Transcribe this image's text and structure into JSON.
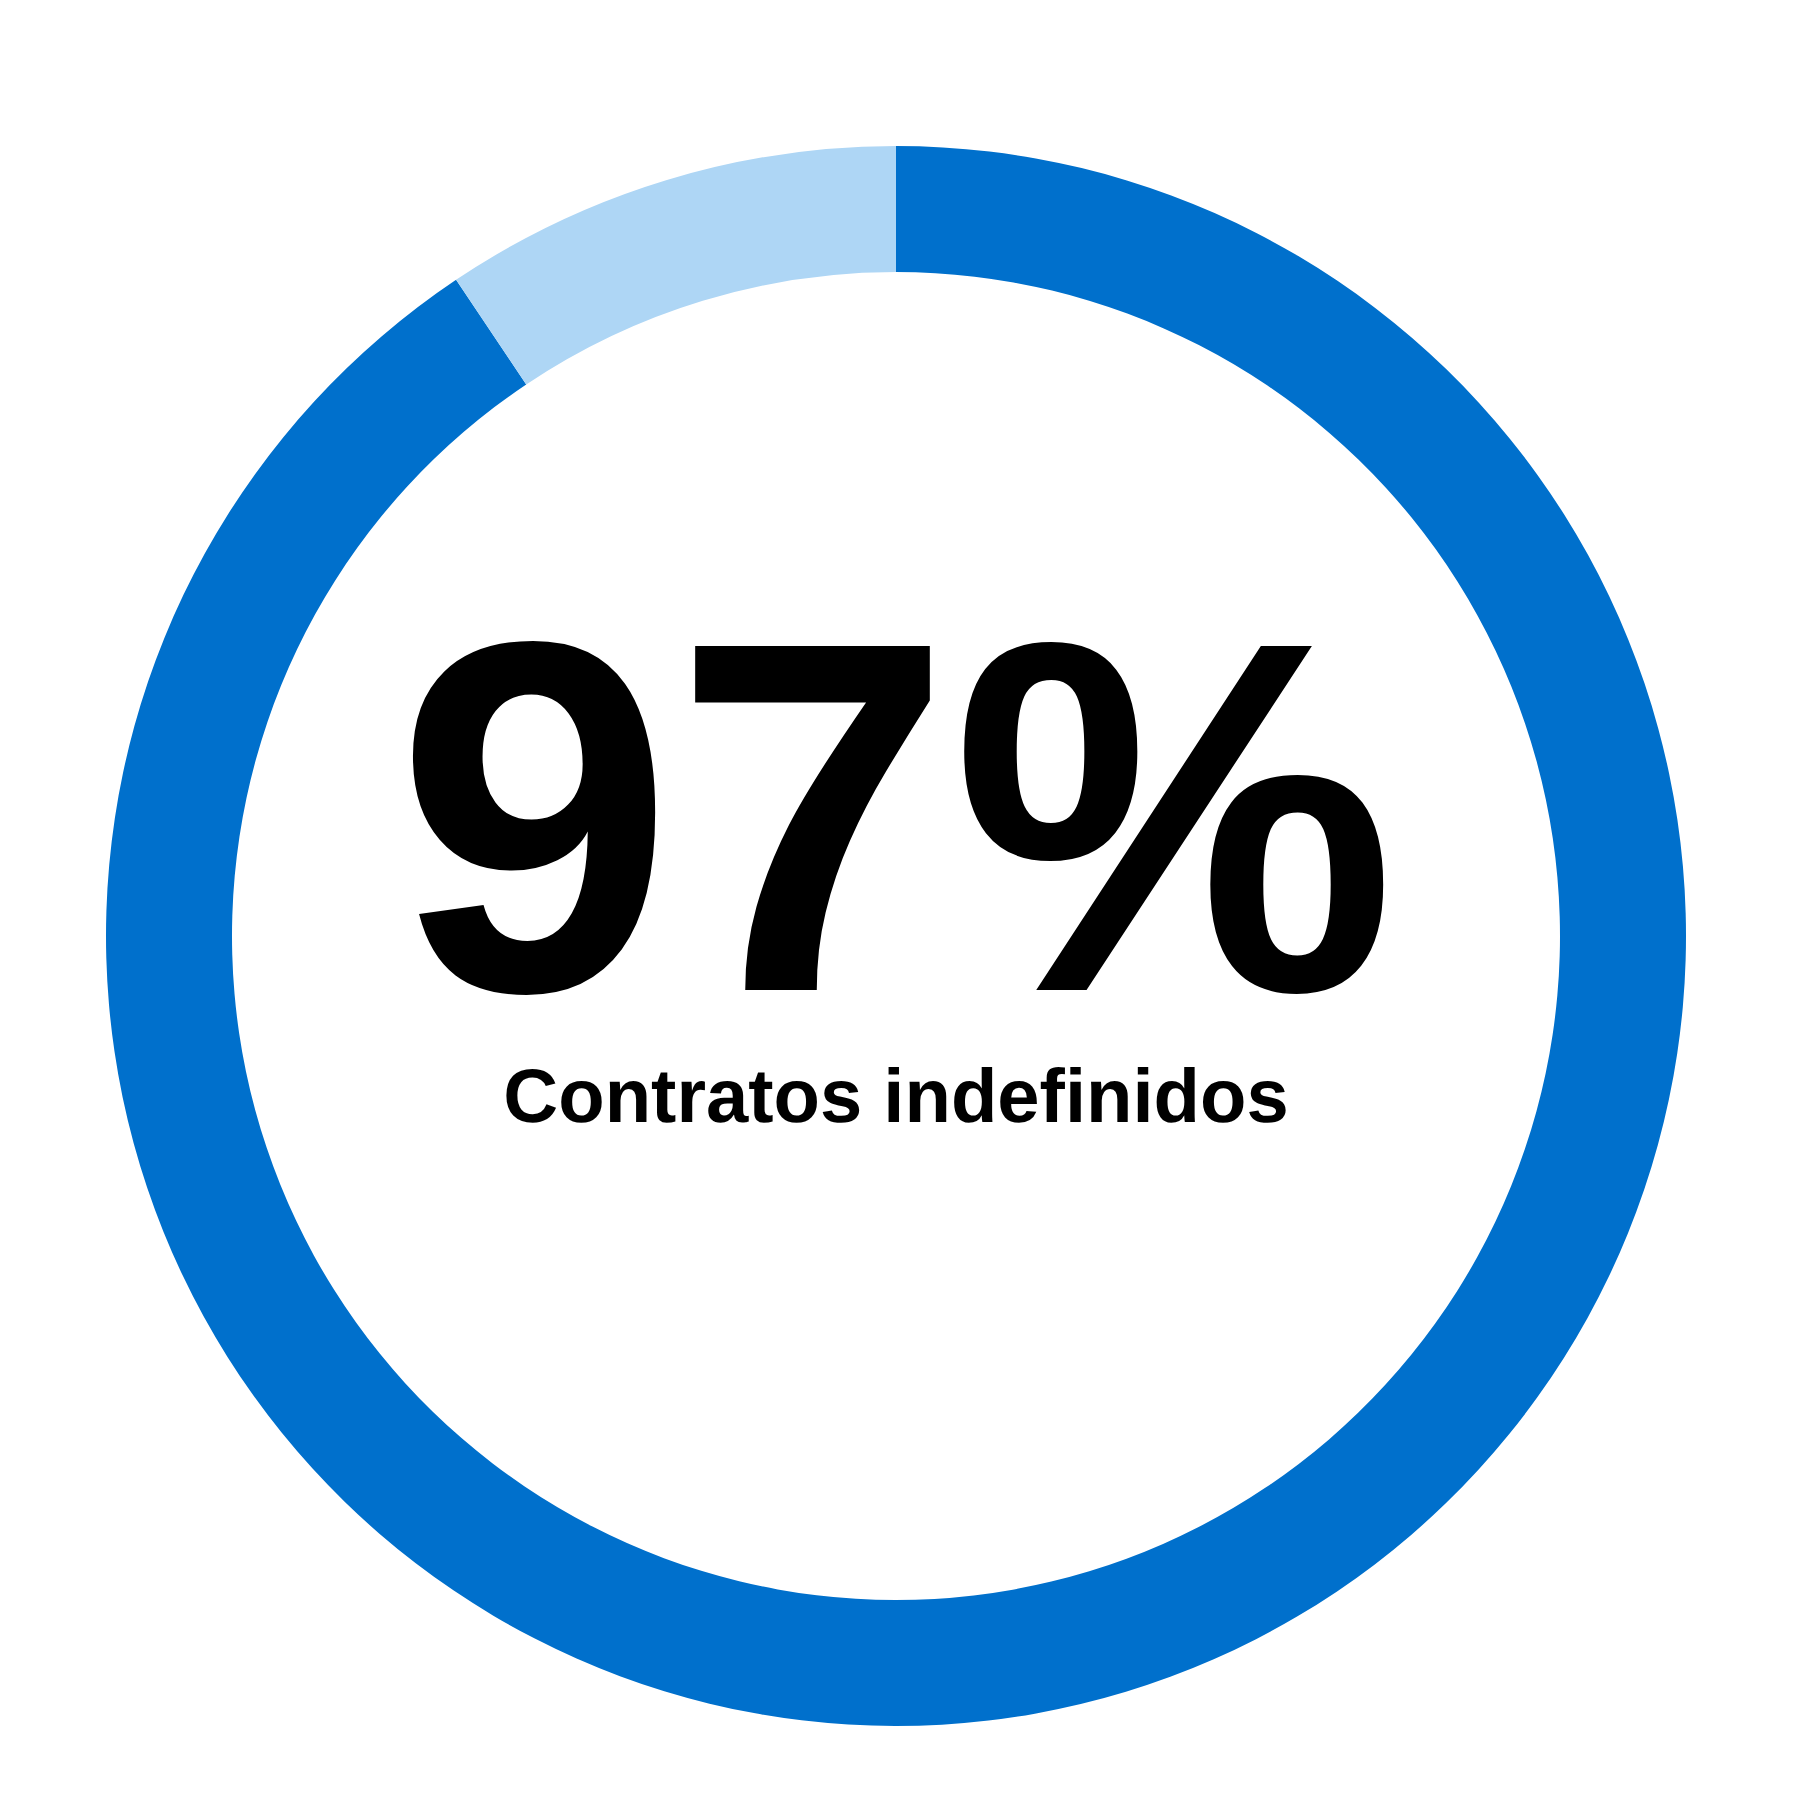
{
  "chart_data": {
    "type": "donut",
    "title": "97%",
    "subtitle": "Contratos indefinidos",
    "categories": [
      null,
      null
    ],
    "values": [
      90.6,
      9.4
    ],
    "colors": [
      "#0070cc",
      "#aed6f5"
    ],
    "legend": false
  }
}
